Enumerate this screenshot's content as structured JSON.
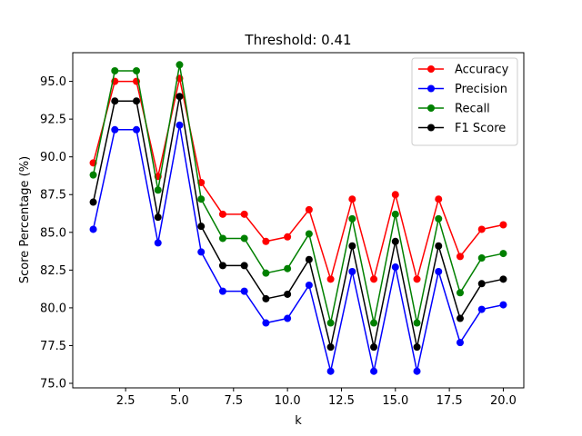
{
  "chart_data": {
    "type": "line",
    "title": "Threshold: 0.41",
    "xlabel": "k",
    "ylabel": "Score Percentage (%)",
    "xlim": [
      0.05,
      20.95
    ],
    "ylim": [
      74.7,
      96.9
    ],
    "xticks": [
      2.5,
      5.0,
      7.5,
      10.0,
      12.5,
      15.0,
      17.5,
      20.0
    ],
    "xtick_labels": [
      "2.5",
      "5.0",
      "7.5",
      "10.0",
      "12.5",
      "15.0",
      "17.5",
      "20.0"
    ],
    "yticks": [
      75.0,
      77.5,
      80.0,
      82.5,
      85.0,
      87.5,
      90.0,
      92.5,
      95.0
    ],
    "ytick_labels": [
      "75.0",
      "77.5",
      "80.0",
      "82.5",
      "85.0",
      "87.5",
      "90.0",
      "92.5",
      "95.0"
    ],
    "grid": false,
    "legend_position": "upper right",
    "x": [
      1,
      2,
      3,
      4,
      5,
      6,
      7,
      8,
      9,
      10,
      11,
      12,
      13,
      14,
      15,
      16,
      17,
      18,
      19,
      20
    ],
    "series": [
      {
        "name": "Accuracy",
        "color": "#ff0000",
        "values": [
          89.6,
          95.0,
          95.0,
          88.7,
          95.2,
          88.3,
          86.2,
          86.2,
          84.4,
          84.7,
          86.5,
          81.9,
          87.2,
          81.9,
          87.5,
          81.9,
          87.2,
          83.4,
          85.2,
          85.5
        ]
      },
      {
        "name": "Precision",
        "color": "#0000ff",
        "values": [
          85.2,
          91.8,
          91.8,
          84.3,
          92.1,
          83.7,
          81.1,
          81.1,
          79.0,
          79.3,
          81.5,
          75.8,
          82.4,
          75.8,
          82.7,
          75.8,
          82.4,
          77.7,
          79.9,
          80.2
        ]
      },
      {
        "name": "Recall",
        "color": "#008000",
        "values": [
          88.8,
          95.7,
          95.7,
          87.8,
          96.1,
          87.2,
          84.6,
          84.6,
          82.3,
          82.6,
          84.9,
          79.0,
          85.9,
          79.0,
          86.2,
          79.0,
          85.9,
          81.0,
          83.3,
          83.6
        ]
      },
      {
        "name": "F1 Score",
        "color": "#000000",
        "values": [
          87.0,
          93.7,
          93.7,
          86.0,
          94.0,
          85.4,
          82.8,
          82.8,
          80.6,
          80.9,
          83.2,
          77.4,
          84.1,
          77.4,
          84.4,
          77.4,
          84.1,
          79.3,
          81.6,
          81.9
        ]
      }
    ]
  }
}
